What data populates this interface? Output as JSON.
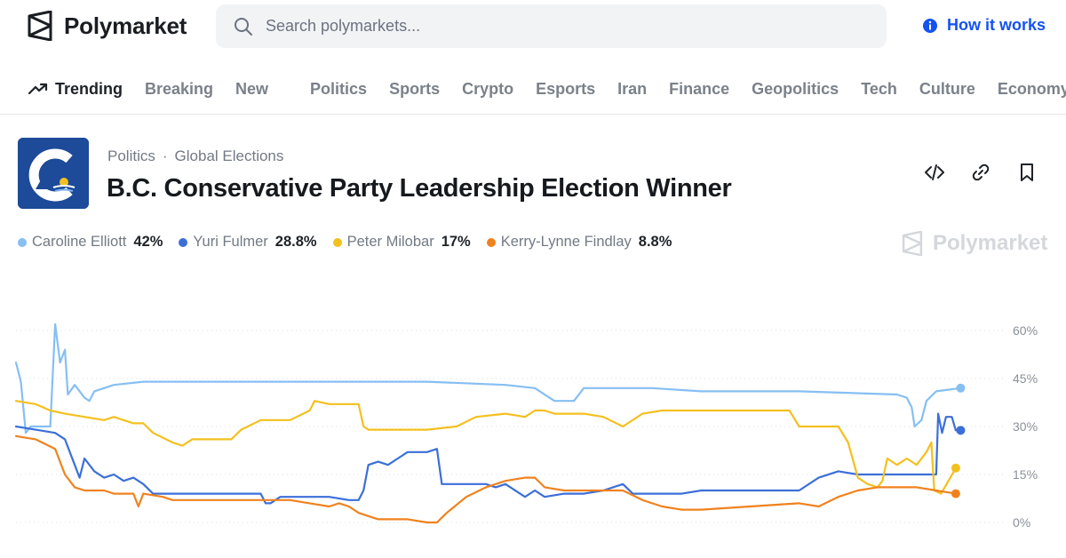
{
  "header": {
    "logo_text": "Polymarket",
    "search_placeholder": "Search polymarkets...",
    "how_it_works": "How it works",
    "accent_color": "#1452f0"
  },
  "nav": {
    "trending": "Trending",
    "breaking": "Breaking",
    "new": "New",
    "categories": [
      "Politics",
      "Sports",
      "Crypto",
      "Esports",
      "Iran",
      "Finance",
      "Geopolitics",
      "Tech",
      "Culture",
      "Economy"
    ]
  },
  "market": {
    "breadcrumb_1": "Politics",
    "breadcrumb_sep": "·",
    "breadcrumb_2": "Global Elections",
    "title": "B.C. Conservative Party Leadership Election Winner"
  },
  "watermark_text": "Polymarket",
  "chart_data": {
    "type": "line",
    "yticks": [
      "60%",
      "45%",
      "30%",
      "15%",
      "0%"
    ],
    "ylim": [
      0,
      60
    ],
    "grid": true,
    "legend_position": "top-left",
    "series": [
      {
        "name": "Caroline Elliott",
        "value_label": "42%",
        "color": "#86bff2",
        "points": [
          [
            0,
            50
          ],
          [
            0.5,
            44
          ],
          [
            1,
            28
          ],
          [
            1.5,
            30
          ],
          [
            3.5,
            30
          ],
          [
            4,
            62
          ],
          [
            4.5,
            50
          ],
          [
            5,
            54
          ],
          [
            5.3,
            40
          ],
          [
            6,
            43
          ],
          [
            7,
            39
          ],
          [
            7.5,
            38
          ],
          [
            8,
            41
          ],
          [
            9,
            42
          ],
          [
            10,
            43
          ],
          [
            13,
            44
          ],
          [
            20,
            44
          ],
          [
            30,
            44
          ],
          [
            40,
            44
          ],
          [
            42,
            44
          ],
          [
            50,
            43
          ],
          [
            53,
            42
          ],
          [
            55,
            38
          ],
          [
            57,
            38
          ],
          [
            58,
            42
          ],
          [
            65,
            42
          ],
          [
            70,
            41
          ],
          [
            80,
            41
          ],
          [
            90,
            40
          ],
          [
            91,
            39
          ],
          [
            91.5,
            36
          ],
          [
            91.8,
            30
          ],
          [
            92.5,
            32
          ],
          [
            93,
            38
          ],
          [
            94,
            41
          ],
          [
            96.5,
            42
          ]
        ]
      },
      {
        "name": "Yuri Fulmer",
        "value_label": "28.8%",
        "color": "#3b6fd8",
        "points": [
          [
            0,
            30
          ],
          [
            2,
            29
          ],
          [
            4,
            28
          ],
          [
            5,
            26
          ],
          [
            6,
            18
          ],
          [
            6.5,
            14
          ],
          [
            7,
            20
          ],
          [
            8,
            16
          ],
          [
            9,
            14
          ],
          [
            10,
            15
          ],
          [
            11,
            13
          ],
          [
            12,
            14
          ],
          [
            13,
            12
          ],
          [
            14,
            9
          ],
          [
            20,
            9
          ],
          [
            25,
            9
          ],
          [
            25.5,
            6
          ],
          [
            26,
            6
          ],
          [
            27,
            8
          ],
          [
            30,
            8
          ],
          [
            32,
            8
          ],
          [
            34,
            7
          ],
          [
            35,
            7
          ],
          [
            35.5,
            10
          ],
          [
            36,
            18
          ],
          [
            37,
            19
          ],
          [
            38,
            18
          ],
          [
            39,
            20
          ],
          [
            40,
            22
          ],
          [
            42,
            22
          ],
          [
            43,
            23
          ],
          [
            43.5,
            12
          ],
          [
            45,
            12
          ],
          [
            48,
            12
          ],
          [
            49,
            11
          ],
          [
            50,
            12
          ],
          [
            52,
            8
          ],
          [
            53,
            10
          ],
          [
            54,
            8
          ],
          [
            56,
            9
          ],
          [
            58,
            9
          ],
          [
            60,
            10
          ],
          [
            62,
            12
          ],
          [
            63,
            9
          ],
          [
            65,
            9
          ],
          [
            68,
            9
          ],
          [
            70,
            10
          ],
          [
            80,
            10
          ],
          [
            82,
            14
          ],
          [
            84,
            16
          ],
          [
            86,
            15
          ],
          [
            88,
            15
          ],
          [
            90,
            15
          ],
          [
            94,
            15
          ],
          [
            94.2,
            34
          ],
          [
            94.6,
            28
          ],
          [
            95,
            33
          ],
          [
            95.6,
            33
          ],
          [
            96,
            28.8
          ],
          [
            96.5,
            28.8
          ]
        ]
      },
      {
        "name": "Peter Milobar",
        "value_label": "17%",
        "color": "#f4c01f",
        "points": [
          [
            0,
            38
          ],
          [
            2,
            37
          ],
          [
            3.5,
            35
          ],
          [
            5,
            34
          ],
          [
            7,
            33
          ],
          [
            9,
            32
          ],
          [
            10,
            33
          ],
          [
            12,
            31
          ],
          [
            13,
            31
          ],
          [
            14,
            28
          ],
          [
            16,
            25
          ],
          [
            17,
            24
          ],
          [
            18,
            26
          ],
          [
            20,
            26
          ],
          [
            22,
            26
          ],
          [
            23,
            29
          ],
          [
            25,
            32
          ],
          [
            28,
            32
          ],
          [
            30,
            35
          ],
          [
            30.5,
            38
          ],
          [
            32,
            37
          ],
          [
            35,
            37
          ],
          [
            35.5,
            30
          ],
          [
            36,
            29
          ],
          [
            40,
            29
          ],
          [
            42,
            29
          ],
          [
            45,
            30
          ],
          [
            47,
            33
          ],
          [
            50,
            34
          ],
          [
            52,
            33
          ],
          [
            53,
            35
          ],
          [
            54,
            35
          ],
          [
            55,
            34
          ],
          [
            58,
            34
          ],
          [
            60,
            33
          ],
          [
            62,
            30
          ],
          [
            64,
            34
          ],
          [
            66,
            35
          ],
          [
            70,
            35
          ],
          [
            79,
            35
          ],
          [
            80,
            30
          ],
          [
            84,
            30
          ],
          [
            85,
            25
          ],
          [
            86,
            14
          ],
          [
            87,
            12
          ],
          [
            88,
            11
          ],
          [
            88.5,
            13
          ],
          [
            89,
            20
          ],
          [
            90,
            18
          ],
          [
            91,
            20
          ],
          [
            92,
            18
          ],
          [
            93,
            22
          ],
          [
            93.5,
            25
          ],
          [
            93.8,
            10
          ],
          [
            94.5,
            9
          ],
          [
            96,
            17
          ]
        ]
      },
      {
        "name": "Kerry-Lynne Findlay",
        "value_label": "8.8%",
        "color": "#f0821e",
        "points": [
          [
            0,
            27
          ],
          [
            2,
            26
          ],
          [
            4,
            23
          ],
          [
            5,
            15
          ],
          [
            6,
            11
          ],
          [
            7,
            10
          ],
          [
            9,
            10
          ],
          [
            10,
            9
          ],
          [
            12,
            9
          ],
          [
            12.5,
            5
          ],
          [
            13,
            9
          ],
          [
            15,
            8
          ],
          [
            16,
            7
          ],
          [
            18,
            7
          ],
          [
            20,
            7
          ],
          [
            25,
            7
          ],
          [
            28,
            7
          ],
          [
            30,
            6
          ],
          [
            32,
            5
          ],
          [
            33,
            6
          ],
          [
            34,
            5
          ],
          [
            35,
            3
          ],
          [
            37,
            1
          ],
          [
            40,
            1
          ],
          [
            42,
            0
          ],
          [
            43,
            0
          ],
          [
            44,
            3
          ],
          [
            46,
            8
          ],
          [
            48,
            11
          ],
          [
            50,
            13
          ],
          [
            52,
            14
          ],
          [
            53,
            14
          ],
          [
            54,
            11
          ],
          [
            56,
            10
          ],
          [
            58,
            10
          ],
          [
            62,
            10
          ],
          [
            64,
            7
          ],
          [
            66,
            5
          ],
          [
            68,
            4
          ],
          [
            70,
            4
          ],
          [
            75,
            5
          ],
          [
            80,
            6
          ],
          [
            82,
            5
          ],
          [
            84,
            8
          ],
          [
            86,
            10
          ],
          [
            88,
            11
          ],
          [
            90,
            11
          ],
          [
            92,
            11
          ],
          [
            94,
            10
          ],
          [
            96,
            9
          ]
        ]
      }
    ],
    "x_domain": [
      0,
      100
    ]
  }
}
